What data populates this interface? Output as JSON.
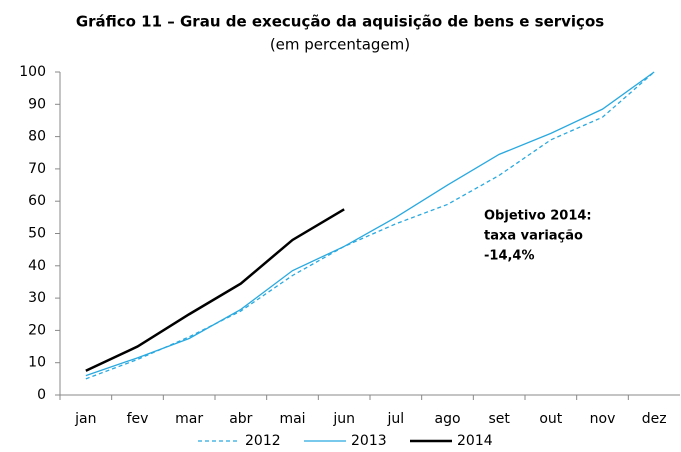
{
  "chart_data": {
    "type": "line",
    "title": "Gráfico 11 – Grau de execução da aquisição de bens e serviços",
    "subtitle": "(em percentagem)",
    "categories": [
      "jan",
      "fev",
      "mar",
      "abr",
      "mai",
      "jun",
      "jul",
      "ago",
      "set",
      "out",
      "nov",
      "dez"
    ],
    "series": [
      {
        "name": "2012",
        "color": "#29a9e0",
        "style": "dashed",
        "values": [
          5,
          11,
          18,
          26,
          37,
          46,
          53,
          59,
          68,
          79,
          86,
          100
        ]
      },
      {
        "name": "2013",
        "color": "#29a9e0",
        "style": "solid",
        "values": [
          6,
          11.5,
          17.5,
          26.5,
          38.5,
          46,
          55,
          65,
          74.5,
          81,
          88.5,
          100
        ]
      },
      {
        "name": "2014",
        "color": "#000000",
        "style": "solid",
        "values": [
          7.5,
          15,
          25,
          34.5,
          48,
          57.5,
          null,
          null,
          null,
          null,
          null,
          null
        ]
      }
    ],
    "annotation": [
      "Objetivo 2014:",
      "taxa variação",
      "-14,4%"
    ],
    "ylim": [
      0,
      100
    ],
    "yticks": [
      0,
      10,
      20,
      30,
      40,
      50,
      60,
      70,
      80,
      90,
      100
    ],
    "grid": false,
    "legend": "bottom"
  }
}
